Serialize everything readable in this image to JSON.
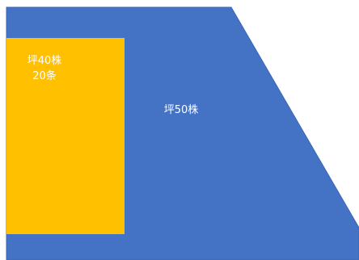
{
  "diagram": {
    "large_region": {
      "label": "坪50株",
      "color": "#4472C4"
    },
    "small_region": {
      "label_line1": "坪40株",
      "label_line2": "20条",
      "color": "#FFC000"
    }
  }
}
